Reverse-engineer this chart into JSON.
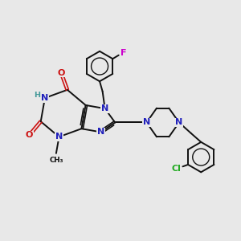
{
  "bg": "#e8e8e8",
  "bc": "#111111",
  "Nc": "#2020bb",
  "Oc": "#cc1111",
  "Fc": "#cc00cc",
  "Clc": "#22aa22",
  "Hc": "#449999",
  "lw": 1.4,
  "lw_d": 1.2,
  "fs": 8.0,
  "fs_sm": 6.8,
  "xlim": [
    0,
    10
  ],
  "ylim": [
    0,
    10
  ]
}
